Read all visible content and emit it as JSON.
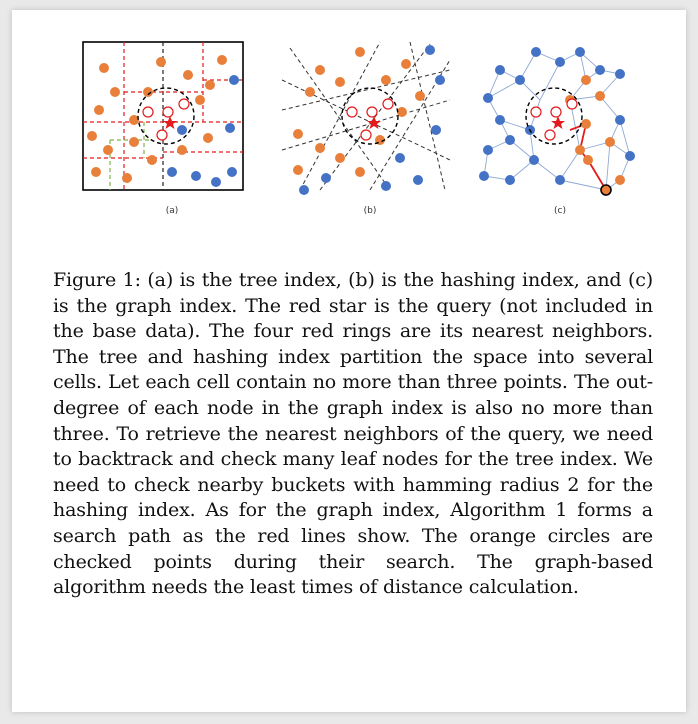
{
  "figure": {
    "panels": [
      {
        "id": "a",
        "label": "(a)"
      },
      {
        "id": "b",
        "label": "(b)"
      },
      {
        "id": "c",
        "label": "(c)"
      }
    ],
    "colors": {
      "orange": "#e87f3a",
      "blue": "#4472c4",
      "red": "#e41a1c",
      "green": "#7fb24a",
      "edge": "#8fa8d6"
    }
  },
  "caption": {
    "label": "Figure 1:",
    "text": "(a) is the tree index, (b) is the hashing index, and (c) is the graph index. The red star is the query (not included in the base data). The four red rings are its nearest neighbors. The tree and hashing index partition the space into several cells. Let each cell contain no more than three points. The out-degree of each node in the graph index is also no more than three. To retrieve the nearest neighbors of the query, we need to backtrack and check many leaf nodes for the tree index. We need to check nearby buckets with hamming radius 2 for the hashing index. As for the graph index, Algorithm 1 forms a search path as the red lines show. The orange circles are checked points during their search. The graph-based algorithm needs the least times of distance calculation."
  }
}
